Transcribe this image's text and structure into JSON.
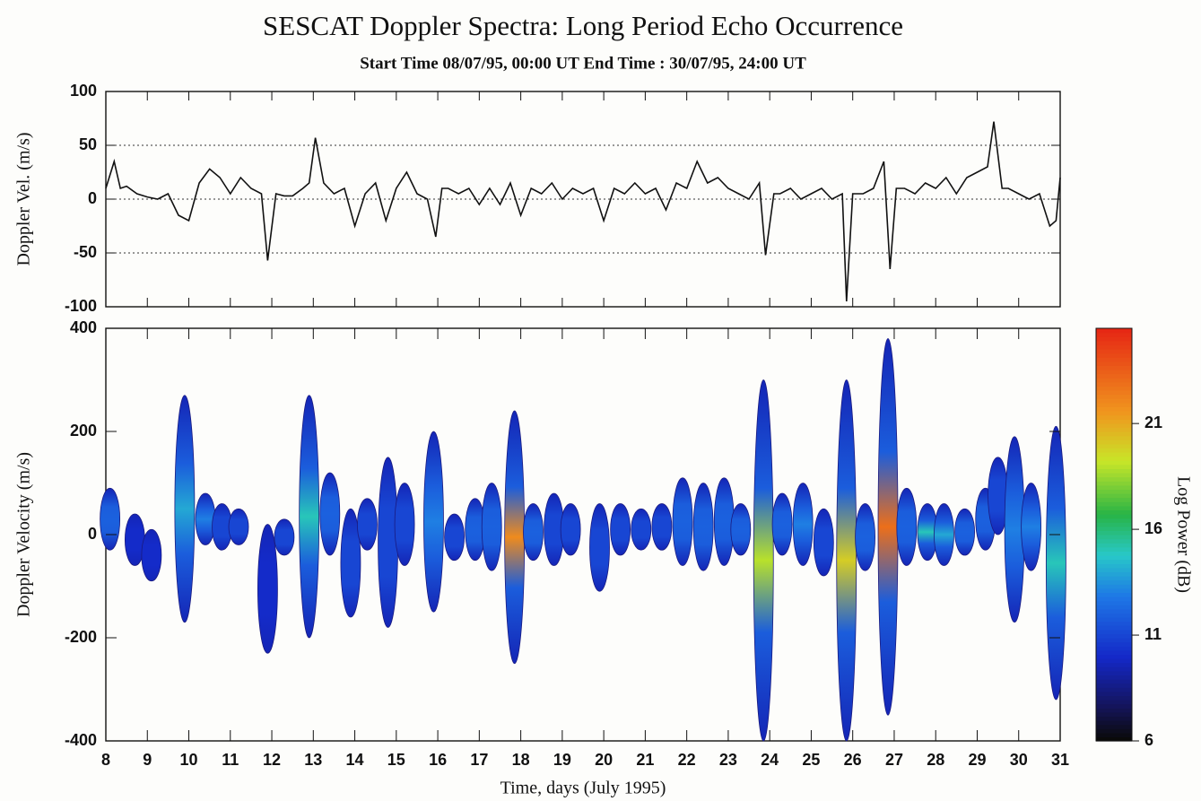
{
  "chart_data": [
    {
      "type": "line",
      "title": "SESCAT Doppler Spectra: Long Period Echo Occurrence",
      "subtitle": "Start Time 08/07/95, 00:00 UT  End Time : 30/07/95, 24:00 UT",
      "y_label": "Doppler Vel. (m/s)",
      "color": "#111111",
      "x": [
        8.0,
        8.2,
        8.35,
        8.5,
        8.75,
        9.0,
        9.25,
        9.5,
        9.75,
        10.0,
        10.25,
        10.5,
        10.75,
        11.0,
        11.25,
        11.5,
        11.75,
        11.9,
        12.1,
        12.3,
        12.5,
        12.75,
        12.9,
        13.05,
        13.25,
        13.5,
        13.75,
        14.0,
        14.25,
        14.5,
        14.75,
        15.0,
        15.25,
        15.5,
        15.75,
        15.95,
        16.1,
        16.25,
        16.5,
        16.75,
        17.0,
        17.25,
        17.5,
        17.75,
        18.0,
        18.25,
        18.5,
        18.75,
        19.0,
        19.25,
        19.5,
        19.75,
        20.0,
        20.25,
        20.5,
        20.75,
        21.0,
        21.25,
        21.5,
        21.75,
        22.0,
        22.25,
        22.5,
        22.75,
        23.0,
        23.25,
        23.5,
        23.75,
        23.9,
        24.1,
        24.25,
        24.5,
        24.75,
        25.0,
        25.25,
        25.5,
        25.75,
        25.85,
        26.0,
        26.25,
        26.5,
        26.75,
        26.9,
        27.05,
        27.25,
        27.5,
        27.75,
        28.0,
        28.25,
        28.5,
        28.75,
        29.0,
        29.25,
        29.4,
        29.6,
        29.75,
        30.0,
        30.25,
        30.5,
        30.75,
        30.9,
        31.0
      ],
      "values": [
        10,
        35,
        10,
        12,
        5,
        2,
        0,
        5,
        -15,
        -20,
        15,
        28,
        20,
        5,
        20,
        10,
        5,
        -57,
        5,
        3,
        3,
        10,
        15,
        57,
        15,
        5,
        10,
        -25,
        5,
        15,
        -20,
        10,
        25,
        5,
        0,
        -35,
        10,
        10,
        5,
        10,
        -5,
        10,
        -5,
        15,
        -15,
        10,
        5,
        15,
        0,
        10,
        5,
        10,
        -20,
        10,
        5,
        15,
        5,
        10,
        -10,
        15,
        10,
        35,
        15,
        20,
        10,
        5,
        0,
        15,
        -52,
        5,
        5,
        10,
        0,
        5,
        10,
        0,
        5,
        -95,
        5,
        5,
        10,
        35,
        -65,
        10,
        10,
        5,
        15,
        10,
        20,
        5,
        20,
        25,
        30,
        72,
        10,
        10,
        5,
        0,
        5,
        -25,
        -20,
        20
      ],
      "xlim": [
        8,
        31
      ],
      "ylim": [
        -100,
        100
      ],
      "yticks": [
        -100,
        -50,
        0,
        50,
        100
      ],
      "grid_values": [
        -50,
        0,
        50
      ]
    },
    {
      "type": "spectrogram",
      "x_label": "Time, days (July 1995)",
      "y_label": "Doppler Velocity (m/s)",
      "colorbar_label": "Log Power (dB)",
      "x": [
        8.1,
        8.7,
        9.1,
        9.9,
        10.4,
        10.8,
        11.2,
        11.9,
        12.3,
        12.9,
        13.4,
        13.9,
        14.3,
        14.8,
        15.2,
        15.9,
        16.4,
        16.9,
        17.3,
        17.85,
        18.3,
        18.8,
        19.2,
        19.9,
        20.4,
        20.9,
        21.4,
        21.9,
        22.4,
        22.9,
        23.3,
        23.85,
        24.3,
        24.8,
        25.3,
        25.85,
        26.3,
        26.85,
        27.3,
        27.8,
        28.2,
        28.7,
        29.2,
        29.5,
        29.9,
        30.3,
        30.9
      ],
      "vmin": [
        -30,
        -60,
        -90,
        -170,
        -20,
        -30,
        -20,
        -230,
        -40,
        -200,
        -40,
        -160,
        -30,
        -180,
        -60,
        -150,
        -50,
        -50,
        -70,
        -250,
        -50,
        -60,
        -40,
        -110,
        -40,
        -30,
        -30,
        -60,
        -70,
        -60,
        -40,
        -400,
        -40,
        -60,
        -80,
        -400,
        -70,
        -350,
        -60,
        -50,
        -60,
        -40,
        -30,
        0,
        -170,
        -70,
        -320
      ],
      "vmax": [
        90,
        40,
        10,
        270,
        80,
        60,
        50,
        20,
        30,
        270,
        120,
        50,
        70,
        150,
        100,
        200,
        40,
        70,
        100,
        240,
        60,
        80,
        60,
        60,
        60,
        50,
        60,
        110,
        100,
        110,
        60,
        300,
        80,
        100,
        50,
        300,
        60,
        380,
        90,
        60,
        60,
        50,
        90,
        150,
        190,
        100,
        210
      ],
      "power": [
        12,
        10,
        10,
        14,
        13,
        11,
        11,
        10,
        11,
        15,
        12,
        11,
        11,
        11,
        11,
        13,
        11,
        12,
        12,
        22,
        12,
        11,
        11,
        11,
        11,
        11,
        11,
        12,
        12,
        12,
        12,
        19,
        12,
        13,
        11,
        20,
        12,
        23,
        12,
        15,
        14,
        12,
        12,
        11,
        13,
        13,
        15
      ],
      "xlim": [
        8,
        31
      ],
      "xticks": [
        8,
        9,
        10,
        11,
        12,
        13,
        14,
        15,
        16,
        17,
        18,
        19,
        20,
        21,
        22,
        23,
        24,
        25,
        26,
        27,
        28,
        29,
        30,
        31
      ],
      "ylim": [
        -400,
        400
      ],
      "yticks": [
        -400,
        -200,
        0,
        200,
        400
      ],
      "clim": [
        6,
        25.5
      ],
      "cticks": [
        6,
        11,
        16,
        21
      ]
    }
  ]
}
